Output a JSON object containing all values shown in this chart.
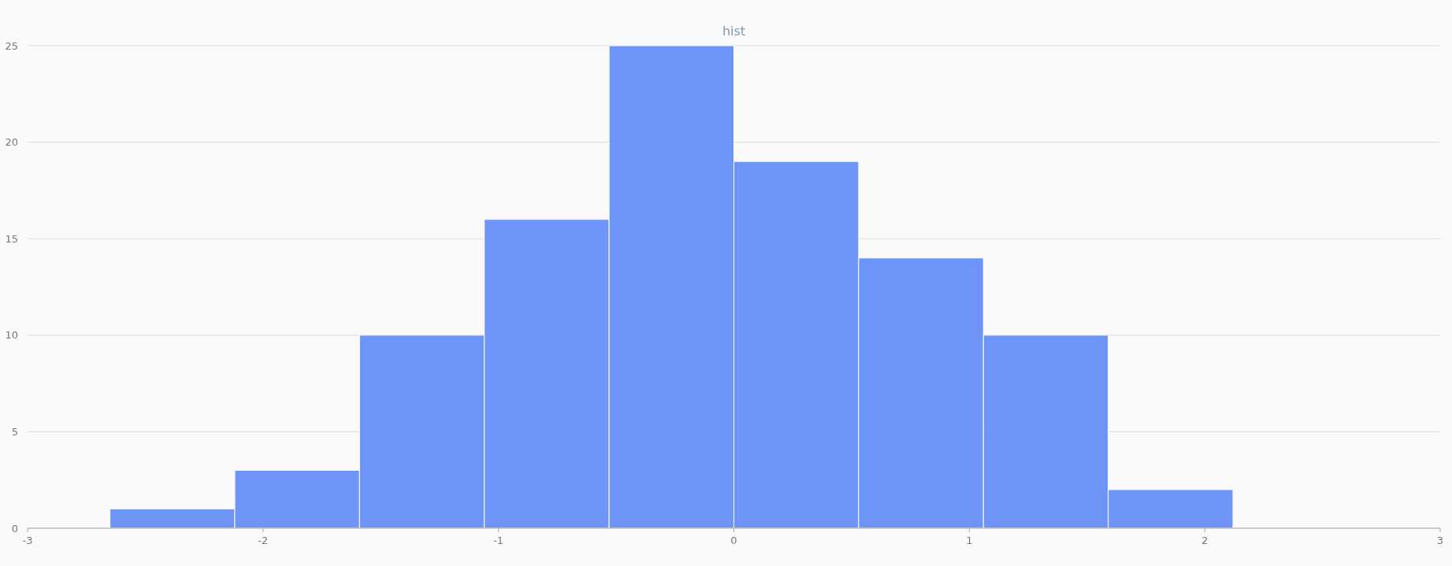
{
  "chart_data": {
    "type": "histogram",
    "title": "hist",
    "bins": [
      -2.65,
      -2.12,
      -1.59,
      -1.06,
      -0.53,
      0,
      0.53,
      1.06,
      1.59,
      2.12
    ],
    "values": [
      1,
      3,
      10,
      16,
      25,
      19,
      14,
      10,
      2
    ],
    "color": "#6f94f7",
    "xlim": [
      -3,
      3
    ],
    "xticks": [
      -3,
      -2,
      -1,
      0,
      1,
      2,
      3
    ],
    "ylim": [
      0,
      25
    ],
    "yticks": [
      0,
      5,
      10,
      15,
      20,
      25
    ],
    "grid": "y"
  }
}
